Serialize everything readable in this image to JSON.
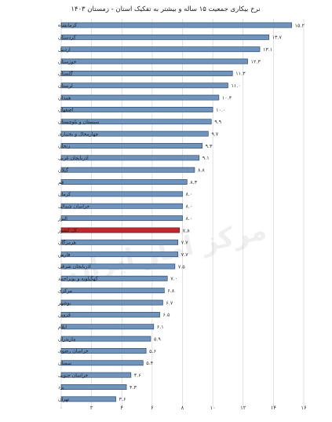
{
  "chart_data": {
    "type": "bar",
    "orientation": "horizontal",
    "title": "نرخ بیکاری جمعیت ۱۵ ساله و بیشتر به تفکیک استان - زمستان ۱۴۰۳",
    "categories": [
      "کرمانشاه",
      "کردستان",
      "اردبیل",
      "خوزستان",
      "گلستان",
      "لرستان",
      "همدان",
      "اصفهان",
      "سیستان و بلوچستان",
      "چهارمحال و بختیاری",
      "زنجان",
      "آذربایجان غربی",
      "گیلان",
      "قم",
      "کرمان",
      "خراسان شمالی",
      "البرز",
      "کل کشور",
      "هرمزگان",
      "فارس",
      "آذربایجان شرقی",
      "کهگیلویه و بویراحمد",
      "مرکزی",
      "بوشهر",
      "قزوین",
      "ایلام",
      "مازندران",
      "خراسان رضوی",
      "سمنان",
      "خراسان جنوبی",
      "یزد",
      "تهران"
    ],
    "values": [
      15.2,
      13.7,
      13.1,
      12.3,
      11.3,
      11.0,
      10.4,
      10.0,
      9.9,
      9.7,
      9.3,
      9.1,
      8.8,
      8.3,
      8.0,
      8.0,
      8.0,
      7.8,
      7.7,
      7.7,
      7.5,
      7.0,
      6.8,
      6.7,
      6.5,
      6.1,
      5.9,
      5.6,
      5.4,
      4.6,
      4.3,
      3.6
    ],
    "value_labels": [
      "۱۵.۲",
      "۱۳.۷",
      "۱۳.۱",
      "۱۲.۳",
      "۱۱.۳",
      "۱۱.۰",
      "۱۰.۴",
      "۱۰.۰",
      "۹.۹",
      "۹.۷",
      "۹.۳",
      "۹.۱",
      "۸.۸",
      "۸.۳",
      "۸.۰",
      "۸.۰",
      "۸.۰",
      "۷.۸",
      "۷.۷",
      "۷.۷",
      "۷.۵",
      "۷.۰",
      "۶.۸",
      "۶.۷",
      "۶.۵",
      "۶.۱",
      "۵.۹",
      "۵.۶",
      "۵.۴",
      "۴.۶",
      "۴.۳",
      "۳.۶"
    ],
    "highlight_category": "کل کشور",
    "xlim": [
      0,
      16
    ],
    "ticks": [
      0,
      2,
      4,
      6,
      8,
      10,
      12,
      14,
      16
    ],
    "tick_labels": [
      "۰",
      "۲",
      "۴",
      "۶",
      "۸",
      "۱۰",
      "۱۲",
      "۱۴",
      "۱۶"
    ],
    "grid": true,
    "legend": "none",
    "colors": {
      "bar": "#6f93ba",
      "bar_edge": "#2e4d72",
      "highlight": "#c0282d",
      "grid": "#cfcfcf"
    }
  },
  "watermark": "مرکز آمار ایران"
}
